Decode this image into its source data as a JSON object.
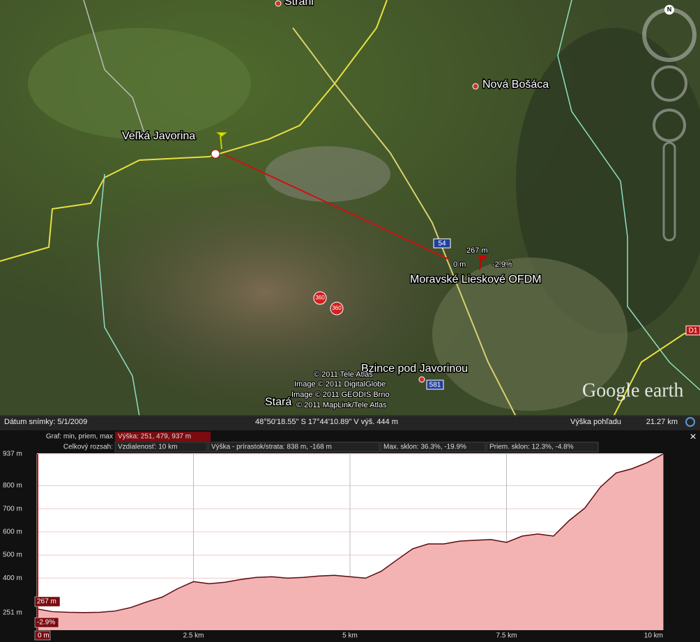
{
  "map": {
    "places": [
      "Stráni",
      "Nová Bošáca",
      "Veľká Javorina",
      "Moravské Lieskové OFDM",
      "Bzince pod Javorinou",
      "Stará"
    ],
    "road_signs": [
      "54",
      "581",
      "D1"
    ],
    "photo_icons": [
      "360",
      "360"
    ],
    "route_cursor": {
      "elevation": "267 m",
      "distance": "0 m",
      "slope": "-2.9%"
    },
    "copyright": [
      "© 2011 Tele Atlas",
      "Image © 2011 DigitalGlobe",
      "Image © 2011 GEODIS Brno",
      "© 2011 MapLink/Tele Atlas"
    ],
    "logo": "Google earth",
    "compass": "N"
  },
  "status_bar": {
    "imagery_date": "Dátum snímky: 5/1/2009",
    "coordinates": "48°50'18.55\" S  17°44'10.89\" V  výš.  444 m",
    "eye_altitude_label": "Výška pohľadu",
    "eye_altitude": "21.27 km"
  },
  "profile": {
    "stats": {
      "graph_label": "Graf: min, priem, max",
      "elevation": "Výška: 251, 479, 937 m",
      "range_label": "Celkový rozsah:",
      "distance": "Vzdialenosť: 10 km",
      "gain_loss": "Výška - prírastok/strata: 838 m, -168 m",
      "max_slope": "Max. sklon: 36.3%, -19.9%",
      "avg_slope": "Priem. sklon: 12.3%, -4.8%"
    },
    "cursor": {
      "elevation": "267 m",
      "slope": "-2.9%"
    },
    "close": "×",
    "chart": {
      "type": "area",
      "x": [
        0,
        0.25,
        0.5,
        0.75,
        1,
        1.25,
        1.5,
        1.75,
        2,
        2.25,
        2.5,
        2.75,
        3,
        3.25,
        3.5,
        3.75,
        4,
        4.25,
        4.5,
        4.75,
        5,
        5.25,
        5.5,
        5.75,
        6,
        6.25,
        6.5,
        6.75,
        7,
        7.25,
        7.5,
        7.75,
        8,
        8.25,
        8.5,
        8.75,
        9,
        9.25,
        9.5,
        9.75,
        10
      ],
      "values": [
        267,
        255,
        252,
        251,
        252,
        258,
        273,
        297,
        318,
        355,
        385,
        376,
        382,
        394,
        403,
        406,
        400,
        403,
        409,
        412,
        406,
        400,
        430,
        479,
        527,
        548,
        548,
        560,
        564,
        567,
        555,
        582,
        591,
        582,
        649,
        703,
        794,
        855,
        873,
        900,
        937
      ],
      "line_color": "#5a0a10",
      "fill_color": "#f3b3b3",
      "xlim": [
        0,
        10
      ],
      "ylim": [
        175,
        937
      ],
      "xticks": [
        {
          "value": 0,
          "label": "0 m"
        },
        {
          "value": 2.5,
          "label": "2.5 km"
        },
        {
          "value": 5,
          "label": "5 km"
        },
        {
          "value": 7.5,
          "label": "7.5 km"
        },
        {
          "value": 10,
          "label": "10 km"
        }
      ],
      "yticks": [
        {
          "value": 937,
          "label": "937 m"
        },
        {
          "value": 800,
          "label": "800 m"
        },
        {
          "value": 700,
          "label": "700 m"
        },
        {
          "value": 600,
          "label": "600 m"
        },
        {
          "value": 500,
          "label": "500 m"
        },
        {
          "value": 400,
          "label": "400 m"
        },
        {
          "value": 251,
          "label": "251 m"
        }
      ],
      "grid": true
    }
  }
}
